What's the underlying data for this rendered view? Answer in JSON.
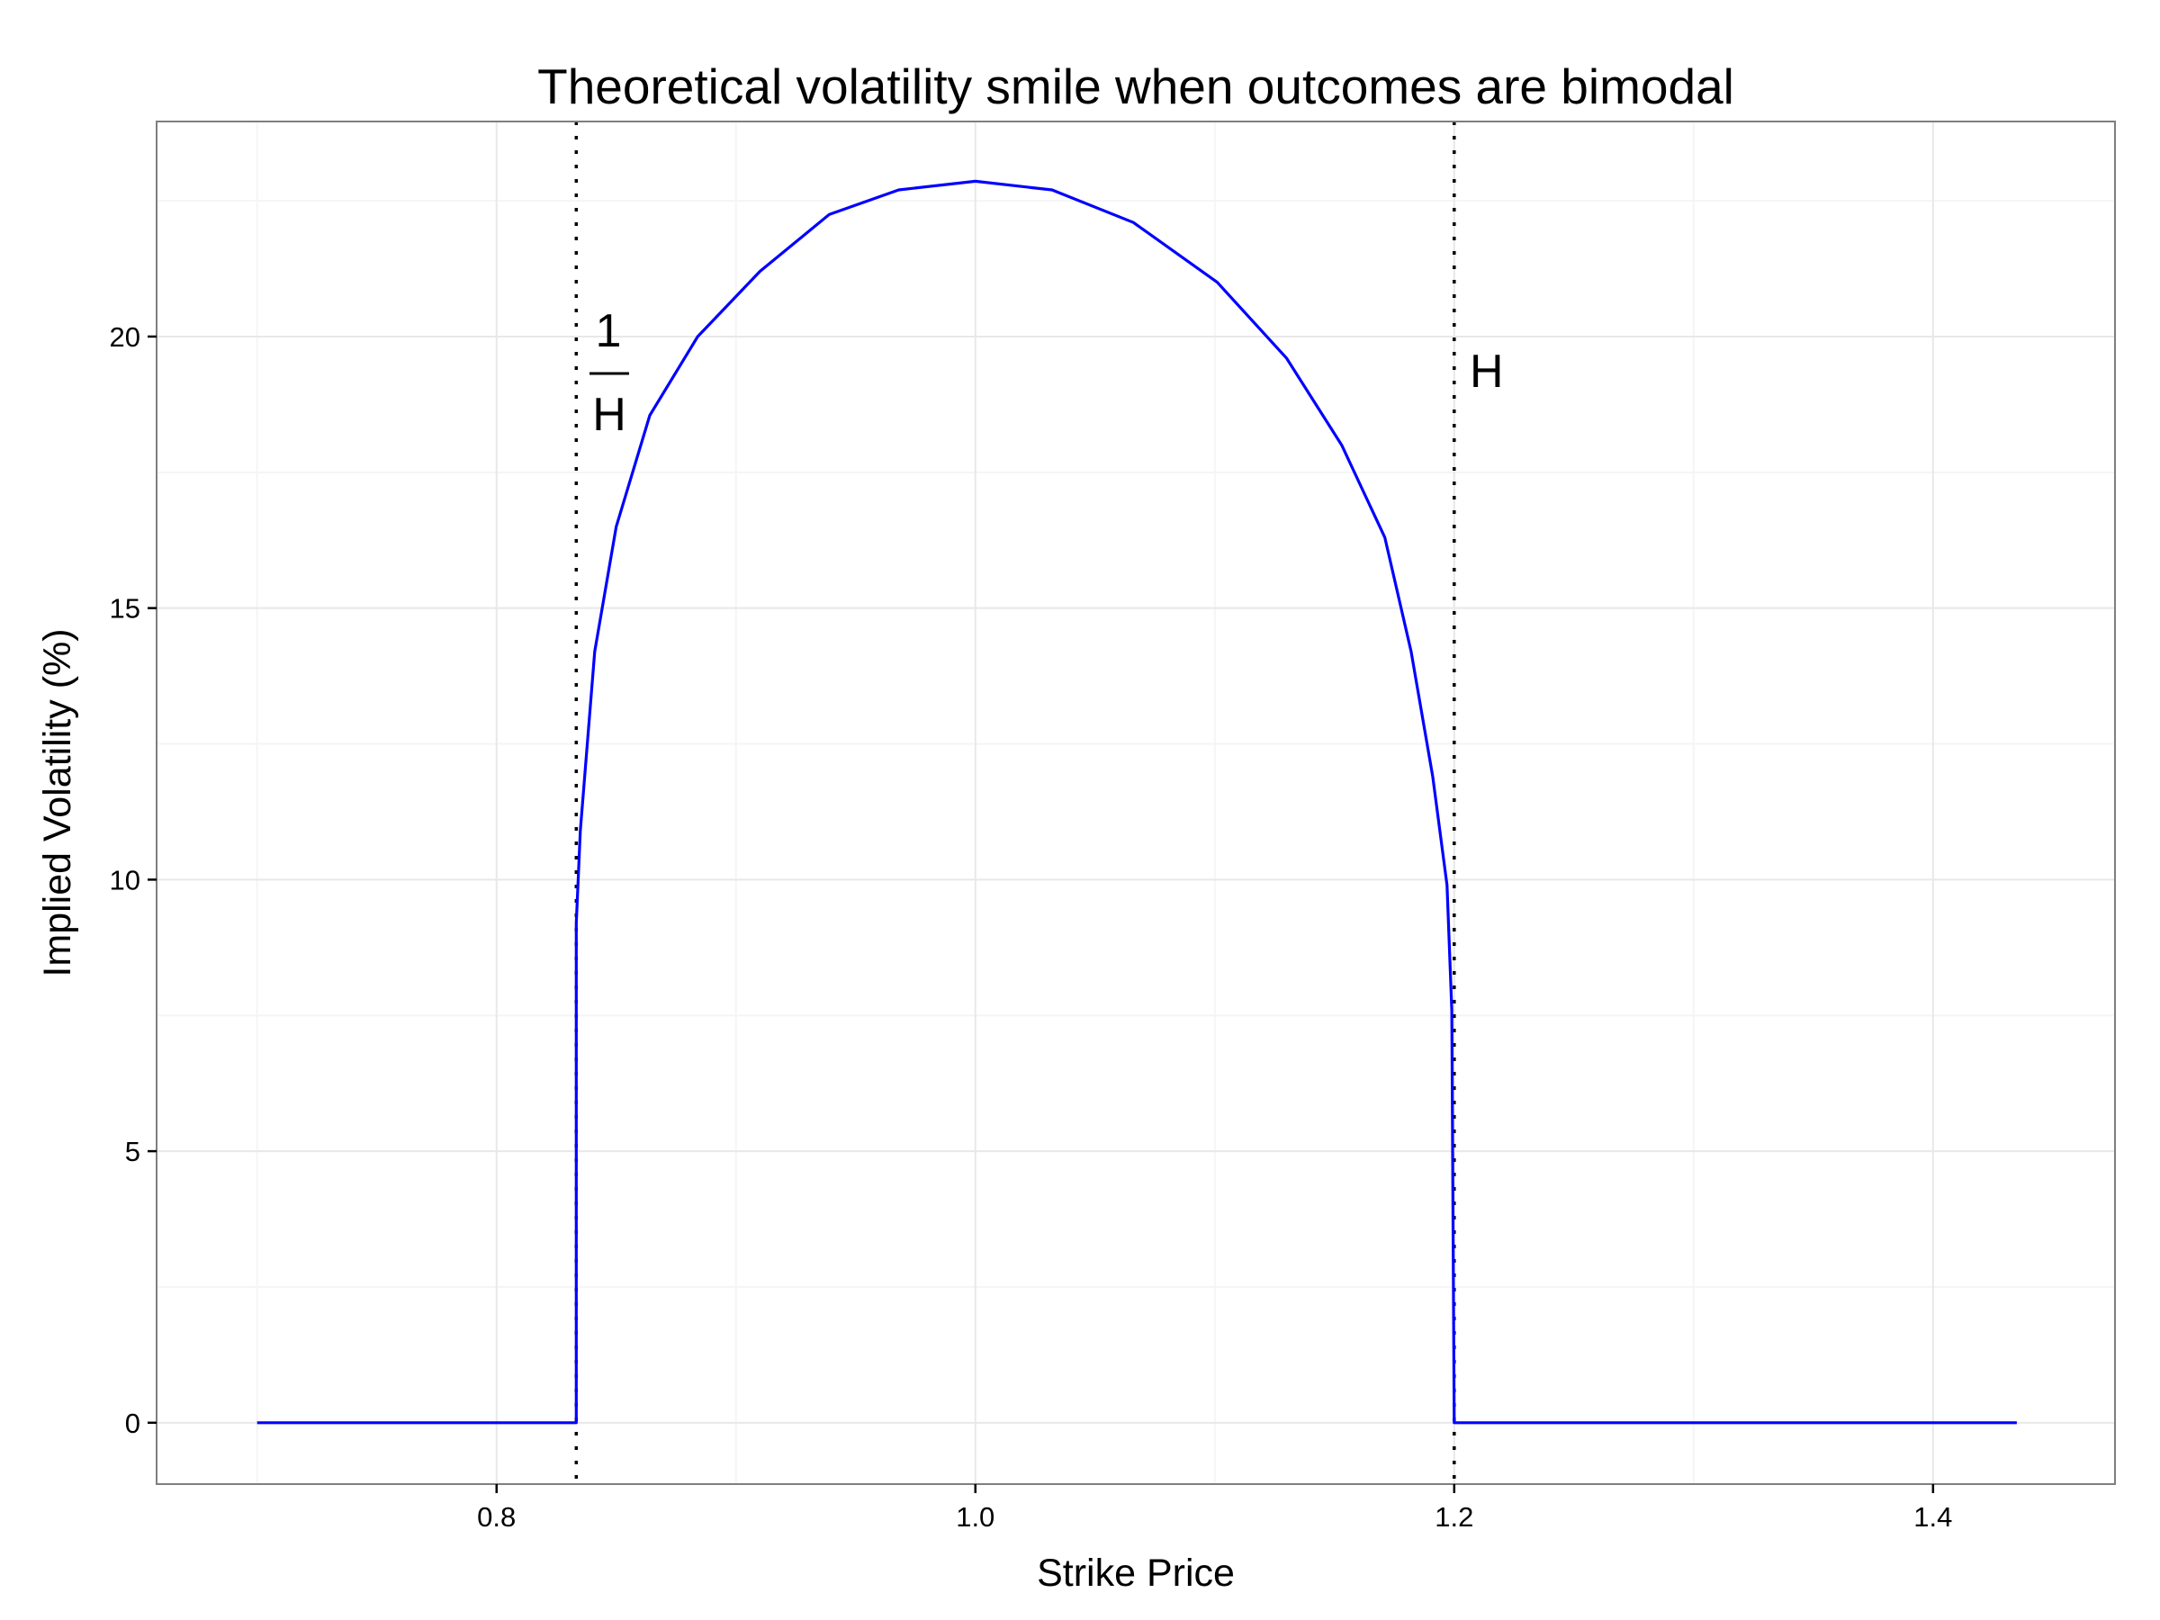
{
  "chart_data": {
    "type": "line",
    "title": "Theoretical volatility smile when outcomes are bimodal",
    "xlabel": "Strike Price",
    "ylabel": "Implied Volatility (%)",
    "xlim": [
      0.658,
      1.476
    ],
    "ylim": [
      -1.13,
      23.96
    ],
    "xticks": [
      0.8,
      1.0,
      1.2,
      1.4
    ],
    "xtick_labels": [
      "0.8",
      "1.0",
      "1.2",
      "1.4"
    ],
    "yticks": [
      0,
      5,
      10,
      15,
      20
    ],
    "ytick_labels": [
      "0",
      "5",
      "10",
      "15",
      "20"
    ],
    "grid": true,
    "line_color": "#0000ff",
    "series": [
      {
        "x": [
          0.7,
          0.8333,
          0.8333,
          0.835,
          0.841,
          0.85,
          0.864,
          0.884,
          0.91,
          0.939,
          0.968,
          1.0,
          1.032,
          1.066,
          1.101,
          1.13,
          1.153,
          1.171,
          1.182,
          1.191,
          1.197,
          1.199,
          1.2,
          1.435
        ],
        "y": [
          0,
          0,
          9.2,
          10.9,
          14.2,
          16.5,
          18.55,
          20.0,
          21.2,
          22.25,
          22.7,
          22.86,
          22.7,
          22.1,
          21.0,
          19.6,
          18.0,
          16.3,
          14.2,
          11.9,
          9.9,
          7.6,
          0,
          0
        ]
      }
    ],
    "vlines": [
      {
        "x": 0.8333,
        "style": "dotted",
        "label_numerator": "1",
        "label_denominator": "H"
      },
      {
        "x": 1.2,
        "style": "dotted",
        "label": "H"
      }
    ]
  }
}
